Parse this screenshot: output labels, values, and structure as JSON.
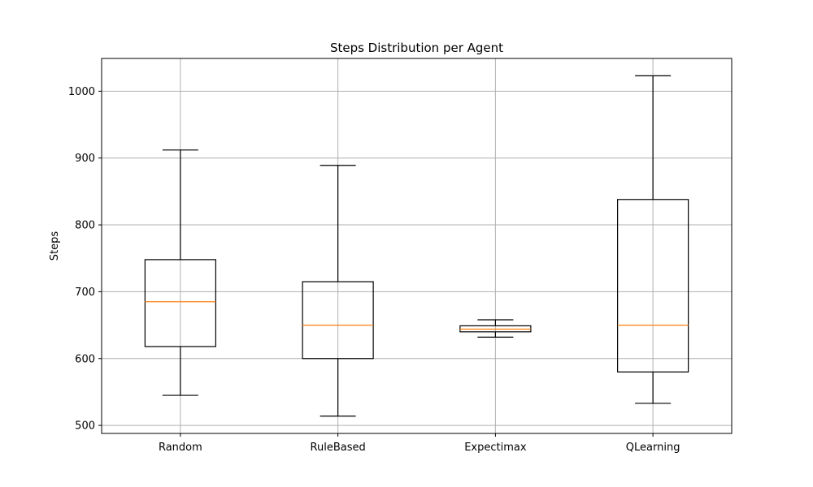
{
  "chart_data": {
    "type": "boxplot",
    "title": "Steps Distribution per Agent",
    "xlabel": "",
    "ylabel": "Steps",
    "ylim": [
      488,
      1049
    ],
    "yticks": [
      500,
      600,
      700,
      800,
      900,
      1000
    ],
    "grid": true,
    "categories": [
      "Random",
      "RuleBased",
      "Expectimax",
      "QLearning"
    ],
    "boxes": [
      {
        "category": "Random",
        "whisker_low": 545,
        "q1": 618,
        "median": 685,
        "q3": 748,
        "whisker_high": 912
      },
      {
        "category": "RuleBased",
        "whisker_low": 514,
        "q1": 600,
        "median": 650,
        "q3": 715,
        "whisker_high": 889
      },
      {
        "category": "Expectimax",
        "whisker_low": 632,
        "q1": 640,
        "median": 644,
        "q3": 649,
        "whisker_high": 658
      },
      {
        "category": "QLearning",
        "whisker_low": 533,
        "q1": 580,
        "median": 650,
        "q3": 838,
        "whisker_high": 1023
      }
    ],
    "colors": {
      "box": "#000000",
      "median": "#ff7f0e",
      "grid": "#b0b0b0"
    }
  }
}
